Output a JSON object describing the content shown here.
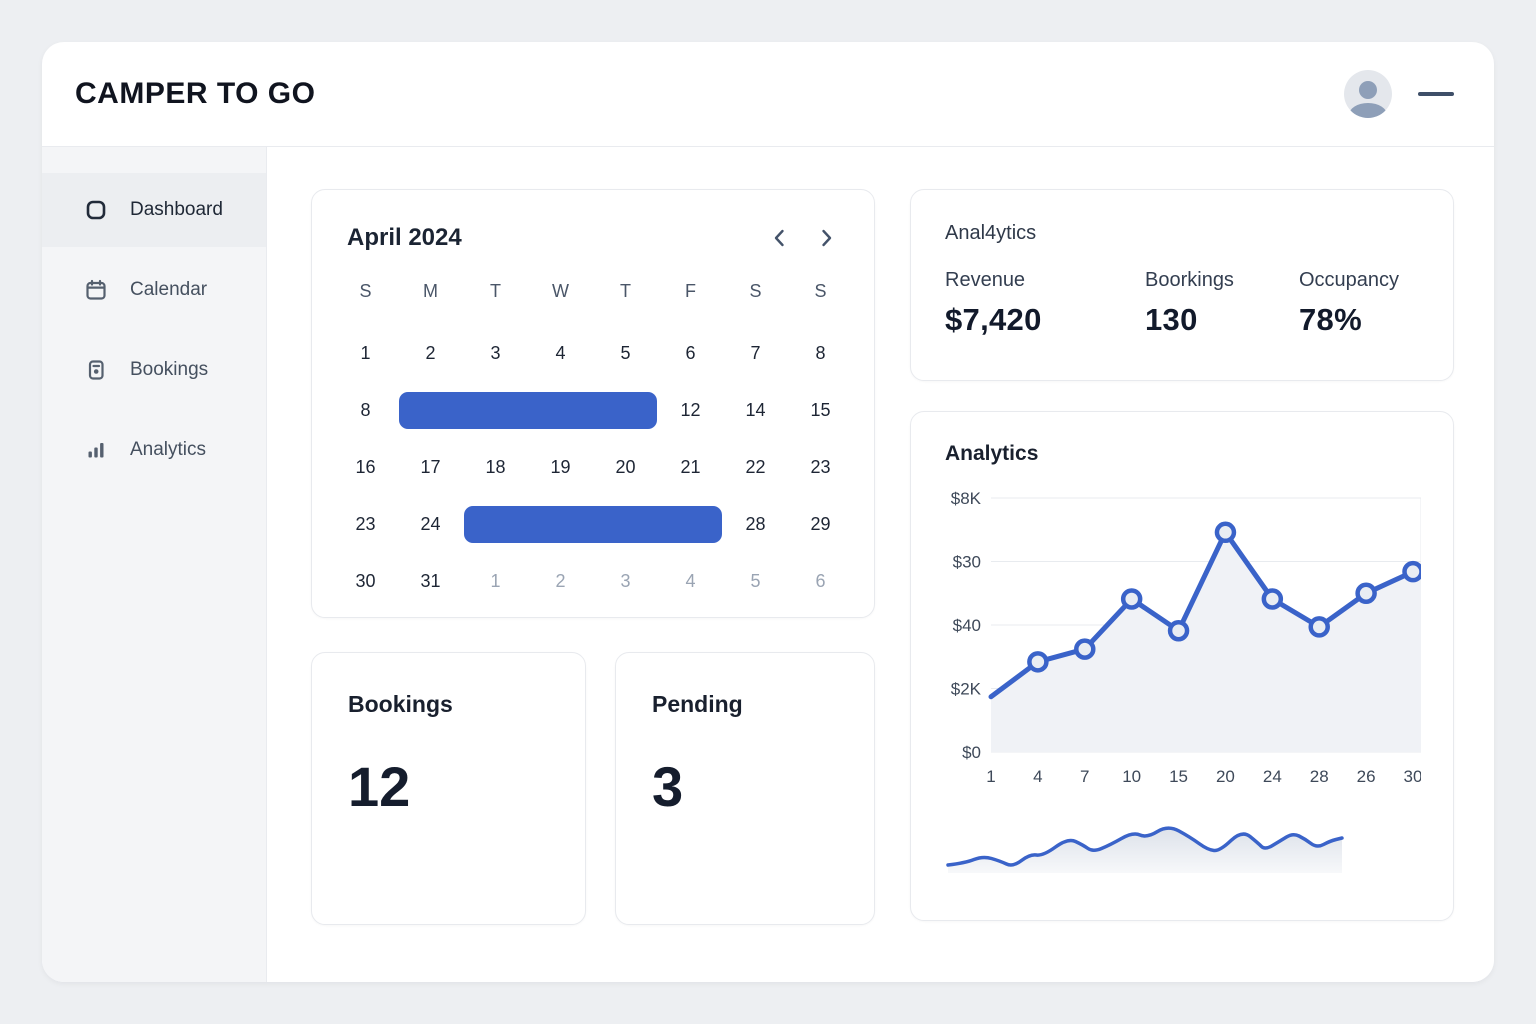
{
  "app": {
    "title": "CAMPER TO GO"
  },
  "header": {
    "icons": [
      "avatar-icon",
      "dash-icon"
    ]
  },
  "sidebar": {
    "items": [
      {
        "label": "Dashboard",
        "icon": "dashboard-icon",
        "active": true
      },
      {
        "label": "Calendar",
        "icon": "calendar-icon",
        "active": false
      },
      {
        "label": "Bookings",
        "icon": "bookings-icon",
        "active": false
      },
      {
        "label": "Analytics",
        "icon": "analytics-icon",
        "active": false
      }
    ]
  },
  "calendar": {
    "title": "April 2024",
    "nav_icons": [
      "chevron-left-icon",
      "chevron-right-icon"
    ],
    "day_headers": [
      "S",
      "M",
      "T",
      "W",
      "T",
      "F",
      "S",
      "S"
    ],
    "rows": [
      [
        {
          "d": "1"
        },
        {
          "d": "2"
        },
        {
          "d": "3"
        },
        {
          "d": "4"
        },
        {
          "d": "5"
        },
        {
          "d": "6"
        },
        {
          "d": "7"
        },
        {
          "d": "8"
        }
      ],
      [
        {
          "d": "8"
        },
        {
          "bar": 4
        },
        {
          "d": "12"
        },
        {
          "d": "14"
        },
        {
          "d": "15"
        }
      ],
      [
        {
          "d": "16"
        },
        {
          "d": "17"
        },
        {
          "d": "18"
        },
        {
          "d": "19"
        },
        {
          "d": "20"
        },
        {
          "d": "21"
        },
        {
          "d": "22"
        },
        {
          "d": "23"
        }
      ],
      [
        {
          "d": "23"
        },
        {
          "d": "24"
        },
        {
          "bar": 4
        },
        {
          "d": "28"
        },
        {
          "d": "29"
        }
      ],
      [
        {
          "d": "30"
        },
        {
          "d": "31"
        },
        {
          "d": "1",
          "m": 1
        },
        {
          "d": "2",
          "m": 1
        },
        {
          "d": "3",
          "m": 1
        },
        {
          "d": "4",
          "m": 1
        },
        {
          "d": "5",
          "m": 1
        },
        {
          "d": "6",
          "m": 1
        }
      ]
    ],
    "range_color": "#3a63c9"
  },
  "stats": {
    "title": "Anal4ytics",
    "items": [
      {
        "label": "Revenue",
        "value": "$7,420"
      },
      {
        "label": "Boorkings",
        "value": "130"
      },
      {
        "label": "Occupancy",
        "value": "78%"
      }
    ]
  },
  "cards": {
    "bookings": {
      "title": "Bookings",
      "value": "12"
    },
    "pending": {
      "title": "Pending",
      "value": "3"
    }
  },
  "chart_data": {
    "type": "line",
    "title": "Analytics",
    "x_labels": [
      "1",
      "4",
      "7",
      "10",
      "15",
      "20",
      "24",
      "28",
      "26",
      "30"
    ],
    "y_labels_top_to_bottom": [
      "$8K",
      "$30",
      "$40",
      "$2K",
      "$0"
    ],
    "values_grid_units": [
      0.87,
      1.42,
      1.62,
      2.41,
      1.91,
      3.46,
      2.41,
      1.97,
      2.5,
      2.84
    ],
    "marker_from_index": 1,
    "grid": true,
    "legend": false,
    "line_color": "#3a63c9",
    "area_fill": "#f0f2f6",
    "grid_color": "#e8ebef",
    "marker_fill": "#e9edf3",
    "sparkline": {
      "line_color": "#3a63c9",
      "fill_top": "#dde2ea",
      "fill_bottom": "#f7f8fa",
      "points": [
        [
          3,
          50
        ],
        [
          20,
          48
        ],
        [
          38,
          41
        ],
        [
          55,
          46
        ],
        [
          68,
          52
        ],
        [
          85,
          39
        ],
        [
          98,
          41
        ],
        [
          123,
          23
        ],
        [
          138,
          30
        ],
        [
          148,
          37
        ],
        [
          165,
          30
        ],
        [
          188,
          17
        ],
        [
          202,
          23
        ],
        [
          223,
          10
        ],
        [
          245,
          22
        ],
        [
          263,
          35
        ],
        [
          275,
          36
        ],
        [
          297,
          15
        ],
        [
          313,
          28
        ],
        [
          320,
          35
        ],
        [
          335,
          26
        ],
        [
          348,
          18
        ],
        [
          360,
          24
        ],
        [
          372,
          33
        ],
        [
          385,
          26
        ],
        [
          397,
          23
        ]
      ]
    }
  }
}
